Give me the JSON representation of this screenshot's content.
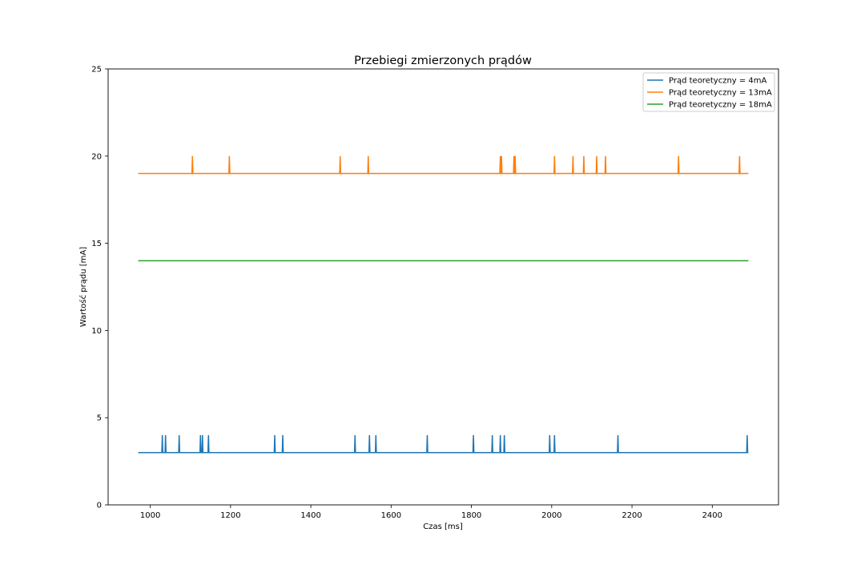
{
  "chart_data": {
    "type": "line",
    "title": "Przebiegi zmierzonych prądów",
    "xlabel": "Czas [ms]",
    "ylabel": "Wartość prądu [mA]",
    "xlim": [
      895,
      2565
    ],
    "ylim": [
      0,
      25
    ],
    "x_ticks": [
      1000,
      1200,
      1400,
      1600,
      1800,
      2000,
      2200,
      2400
    ],
    "y_ticks": [
      0,
      5,
      10,
      15,
      20,
      25
    ],
    "grid": false,
    "legend_position": "top-right",
    "x_start": 970,
    "x_end": 2490,
    "series": [
      {
        "name": "Prąd teoretyczny = 4mA",
        "color": "#1f77b4",
        "baseline": 3,
        "spike_value": 4,
        "spikes_at": [
          1030,
          1038,
          1072,
          1125,
          1130,
          1145,
          1310,
          1330,
          1510,
          1546,
          1562,
          1690,
          1805,
          1852,
          1872,
          1882,
          1995,
          2007,
          2165,
          2487
        ]
      },
      {
        "name": "Prąd teoretyczny = 13mA",
        "color": "#ff7f0e",
        "baseline": 19,
        "spike_value": 20,
        "spikes_at": [
          1105,
          1197,
          1473,
          1543,
          1872,
          1875,
          1906,
          1909,
          2007,
          2053,
          2080,
          2112,
          2134,
          2316,
          2468
        ]
      },
      {
        "name": "Prąd teoretyczny = 18mA",
        "color": "#2ca02c",
        "baseline": 14,
        "spike_value": null,
        "spikes_at": []
      }
    ]
  }
}
